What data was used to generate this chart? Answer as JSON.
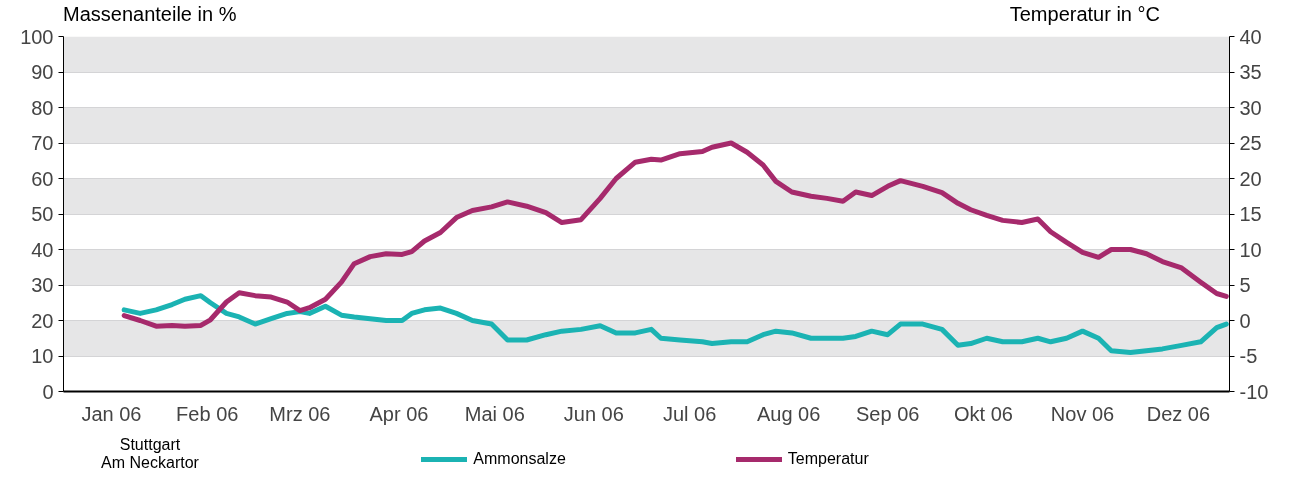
{
  "chart_data": {
    "type": "line",
    "ylabel": "Massenanteile in %",
    "y2label": "Temperatur in °C",
    "annotations": [
      "Stuttgart\nAm Neckartor"
    ],
    "xlim": [
      "2006-01-01",
      "2007-01-01"
    ],
    "xticks": [
      {
        "value": "2006-01-01",
        "label": null
      },
      {
        "value": "2006-01-16",
        "label": "Jan 06"
      },
      {
        "value": "2006-02-01",
        "label": null
      },
      {
        "value": "2006-02-15",
        "label": "Feb 06"
      },
      {
        "value": "2006-03-01",
        "label": null
      },
      {
        "value": "2006-03-16",
        "label": "Mrz 06"
      },
      {
        "value": "2006-04-01",
        "label": null
      },
      {
        "value": "2006-04-16",
        "label": "Apr 06"
      },
      {
        "value": "2006-05-01",
        "label": null
      },
      {
        "value": "2006-05-16",
        "label": "Mai 06"
      },
      {
        "value": "2006-06-01",
        "label": null
      },
      {
        "value": "2006-06-16",
        "label": "Jun 06"
      },
      {
        "value": "2006-07-01",
        "label": null
      },
      {
        "value": "2006-07-16",
        "label": "Jul 06"
      },
      {
        "value": "2006-08-01",
        "label": null
      },
      {
        "value": "2006-08-16",
        "label": "Aug 06"
      },
      {
        "value": "2006-09-01",
        "label": null
      },
      {
        "value": "2006-09-16",
        "label": "Sep 06"
      },
      {
        "value": "2006-10-01",
        "label": null
      },
      {
        "value": "2006-10-16",
        "label": "Okt 06"
      },
      {
        "value": "2006-11-01",
        "label": null
      },
      {
        "value": "2006-11-16",
        "label": "Nov 06"
      },
      {
        "value": "2006-12-01",
        "label": null
      },
      {
        "value": "2006-12-16",
        "label": "Dez 06"
      },
      {
        "value": "2007-01-01",
        "label": null
      }
    ],
    "ylim": [
      0,
      100
    ],
    "yticks": [
      0,
      10,
      20,
      30,
      40,
      50,
      60,
      70,
      80,
      90,
      100
    ],
    "y2lim": [
      -10,
      40
    ],
    "y2ticks": [
      -10,
      -5,
      0,
      5,
      10,
      15,
      20,
      25,
      30,
      35,
      40
    ],
    "grid": "y",
    "legend": "bottom",
    "line_style": "solid",
    "marker": "none",
    "x": [
      "2006-01-20",
      "2006-01-25",
      "2006-01-30",
      "2006-02-04",
      "2006-02-08",
      "2006-02-13",
      "2006-02-16",
      "2006-02-21",
      "2006-02-25",
      "2006-03-02",
      "2006-03-07",
      "2006-03-12",
      "2006-03-16",
      "2006-03-19",
      "2006-03-24",
      "2006-03-29",
      "2006-04-02",
      "2006-04-07",
      "2006-04-12",
      "2006-04-17",
      "2006-04-20",
      "2006-04-24",
      "2006-04-29",
      "2006-05-04",
      "2006-05-09",
      "2006-05-15",
      "2006-05-20",
      "2006-05-26",
      "2006-06-01",
      "2006-06-06",
      "2006-06-12",
      "2006-06-18",
      "2006-06-23",
      "2006-06-29",
      "2006-07-04",
      "2006-07-07",
      "2006-07-13",
      "2006-07-20",
      "2006-07-23",
      "2006-07-29",
      "2006-08-03",
      "2006-08-08",
      "2006-08-12",
      "2006-08-17",
      "2006-08-23",
      "2006-08-28",
      "2006-09-02",
      "2006-09-06",
      "2006-09-11",
      "2006-09-16",
      "2006-09-20",
      "2006-09-27",
      "2006-10-03",
      "2006-10-08",
      "2006-10-12",
      "2006-10-17",
      "2006-10-22",
      "2006-10-28",
      "2006-11-02",
      "2006-11-06",
      "2006-11-11",
      "2006-11-16",
      "2006-11-21",
      "2006-11-25",
      "2006-12-01",
      "2006-12-06",
      "2006-12-11",
      "2006-12-17",
      "2006-12-23",
      "2006-12-28",
      "2006-12-31"
    ],
    "series": [
      {
        "name": "Ammonsalze",
        "color": "#1bb3b3",
        "values": [
          23,
          22,
          23,
          24.5,
          26,
          27,
          25,
          22,
          21,
          19,
          20.5,
          22,
          22.5,
          22,
          24,
          21.5,
          21,
          20.5,
          20,
          20,
          22,
          23,
          23.5,
          22,
          20,
          19,
          14.5,
          14.5,
          16,
          17,
          17.5,
          18.5,
          16.5,
          16.5,
          17.5,
          15,
          14.5,
          14,
          13.5,
          14,
          14,
          16,
          17,
          16.5,
          15,
          15,
          15,
          15.5,
          17,
          16,
          19,
          19,
          17.5,
          13,
          13.5,
          15,
          14,
          14,
          15,
          14,
          15,
          17,
          15,
          11.5,
          11,
          11.5,
          12,
          13,
          14,
          18,
          19
        ]
      },
      {
        "name": "Temperatur",
        "color": "#a62a6c",
        "axis": "y2",
        "values": [
          0.7,
          0,
          -0.8,
          -0.7,
          -0.8,
          -0.7,
          0.1,
          2.6,
          3.9,
          3.5,
          3.3,
          2.6,
          1.4,
          1.8,
          3,
          5.4,
          8,
          9,
          9.4,
          9.3,
          9.7,
          11.2,
          12.4,
          14.5,
          15.5,
          16,
          16.7,
          16.1,
          15.2,
          13.8,
          14.2,
          17.2,
          20,
          22.3,
          22.7,
          22.6,
          23.5,
          23.8,
          24.4,
          25,
          23.7,
          21.9,
          19.6,
          18.1,
          17.5,
          17.2,
          16.8,
          18.1,
          17.6,
          18.9,
          19.7,
          18.9,
          18,
          16.5,
          15.6,
          14.8,
          14.1,
          13.8,
          14.3,
          12.5,
          11,
          9.6,
          8.9,
          10,
          10,
          9.4,
          8.3,
          7.4,
          5.4,
          3.8,
          3.4
        ]
      }
    ]
  }
}
